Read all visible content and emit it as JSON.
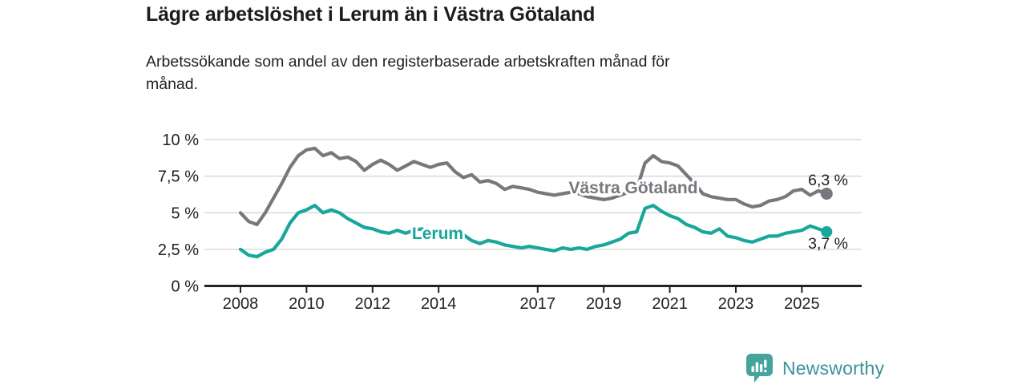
{
  "header": {
    "title": "Lägre arbetslöshet i Lerum än i Västra Götaland",
    "subtitle": "Arbetssökande som andel av den registerbaserade arbetskraften månad för månad."
  },
  "chart_data": {
    "type": "line",
    "title": "Lägre arbetslöshet i Lerum än i Västra Götaland",
    "subtitle": "Arbetssökande som andel av den registerbaserade arbetskraften månad för månad.",
    "x_unit": "year (monthly series, values sampled quarterly)",
    "x_start": 2008,
    "x_interval": 0.25,
    "ylim": [
      0,
      10.5
    ],
    "grid": true,
    "legend_position": "inline-labels-on-lines",
    "y_ticks": [
      {
        "value": 0,
        "label": "0 %"
      },
      {
        "value": 2.5,
        "label": "2,5 %"
      },
      {
        "value": 5,
        "label": "5 %"
      },
      {
        "value": 7.5,
        "label": "7,5 %"
      },
      {
        "value": 10,
        "label": "10 %"
      }
    ],
    "x_ticks": [
      2008,
      2010,
      2012,
      2014,
      2017,
      2019,
      2021,
      2023,
      2025
    ],
    "series": [
      {
        "name": "Västra Götaland",
        "color": "#77777e",
        "end_label": "6,3 %",
        "end_value": 6.3,
        "values": [
          5.0,
          4.4,
          4.2,
          5.0,
          6.0,
          7.0,
          8.1,
          8.9,
          9.3,
          9.4,
          8.9,
          9.1,
          8.7,
          8.8,
          8.5,
          7.9,
          8.3,
          8.6,
          8.3,
          7.9,
          8.2,
          8.5,
          8.3,
          8.1,
          8.3,
          8.4,
          7.8,
          7.4,
          7.6,
          7.1,
          7.2,
          7.0,
          6.6,
          6.8,
          6.7,
          6.6,
          6.4,
          6.3,
          6.2,
          6.3,
          6.4,
          6.3,
          6.1,
          6.0,
          5.9,
          6.0,
          6.2,
          6.4,
          6.6,
          8.4,
          8.9,
          8.5,
          8.4,
          8.2,
          7.6,
          7.0,
          6.3,
          6.1,
          6.0,
          5.9,
          5.9,
          5.6,
          5.4,
          5.5,
          5.8,
          5.9,
          6.1,
          6.5,
          6.6,
          6.2,
          6.5,
          6.3
        ]
      },
      {
        "name": "Lerum",
        "color": "#17a79b",
        "end_label": "3,7 %",
        "end_value": 3.7,
        "values": [
          2.5,
          2.1,
          2.0,
          2.3,
          2.5,
          3.2,
          4.3,
          5.0,
          5.2,
          5.5,
          5.0,
          5.2,
          5.0,
          4.6,
          4.3,
          4.0,
          3.9,
          3.7,
          3.6,
          3.8,
          3.6,
          3.8,
          3.9,
          3.6,
          3.7,
          3.6,
          3.3,
          3.5,
          3.1,
          2.9,
          3.1,
          3.0,
          2.8,
          2.7,
          2.6,
          2.7,
          2.6,
          2.5,
          2.4,
          2.6,
          2.5,
          2.6,
          2.5,
          2.7,
          2.8,
          3.0,
          3.2,
          3.6,
          3.7,
          5.3,
          5.5,
          5.1,
          4.8,
          4.6,
          4.2,
          4.0,
          3.7,
          3.6,
          3.9,
          3.4,
          3.3,
          3.1,
          3.0,
          3.2,
          3.4,
          3.4,
          3.6,
          3.7,
          3.8,
          4.1,
          3.9,
          3.7
        ]
      }
    ]
  },
  "chart_colors": {
    "axis": "#222222",
    "grid": "#d9d9d9",
    "tick_text": "#1f1f1f",
    "annotation_text": "#1f1f1f",
    "label_halo": "#ffffff"
  },
  "logo": {
    "text": "Newsworthy",
    "icon": "newsworthy-speech-bubble-bar-chart-icon",
    "icon_color": "#45a49c",
    "text_color": "#3a929c"
  }
}
